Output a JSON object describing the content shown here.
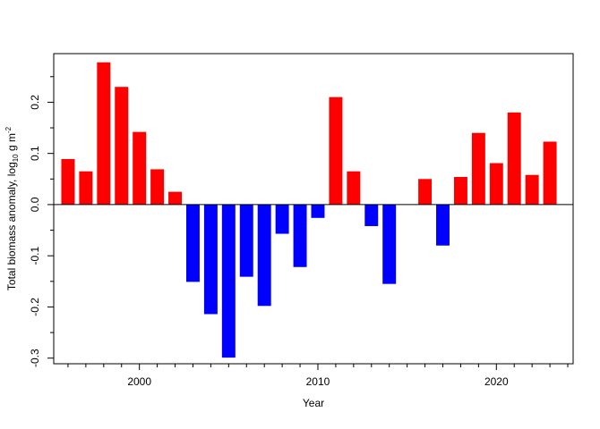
{
  "chart_data": {
    "type": "bar",
    "title": "",
    "xlabel": "Year",
    "ylabel": {
      "prefix": "Total biomass anomaly, log",
      "subscript": "10",
      "middle": " g m",
      "superscript": "-2"
    },
    "xlim": [
      1995.2,
      2024.3
    ],
    "ylim": [
      -0.3,
      0.3
    ],
    "x_ticks": [
      2000,
      2010,
      2020
    ],
    "y_ticks": [
      -0.3,
      -0.2,
      -0.1,
      0.0,
      0.1,
      0.2
    ],
    "y_tick_labels": [
      "-0.3",
      "-0.2",
      "-0.1",
      "0.0",
      "0.1",
      "0.2"
    ],
    "positive_color": "#ff0000",
    "negative_color": "#0000ff",
    "grid": false,
    "legend": "none",
    "x": [
      1996,
      1997,
      1998,
      1999,
      2000,
      2001,
      2002,
      2003,
      2004,
      2005,
      2006,
      2007,
      2008,
      2009,
      2010,
      2011,
      2012,
      2013,
      2014,
      2015,
      2016,
      2017,
      2018,
      2019,
      2020,
      2021,
      2022,
      2023
    ],
    "values": [
      0.089,
      0.065,
      0.278,
      0.23,
      0.142,
      0.069,
      0.025,
      -0.151,
      -0.214,
      -0.299,
      -0.141,
      -0.198,
      -0.057,
      -0.122,
      -0.026,
      0.21,
      0.065,
      -0.042,
      -0.155,
      0.0,
      0.05,
      -0.08,
      0.054,
      0.14,
      0.081,
      0.18,
      0.058,
      0.123
    ]
  }
}
